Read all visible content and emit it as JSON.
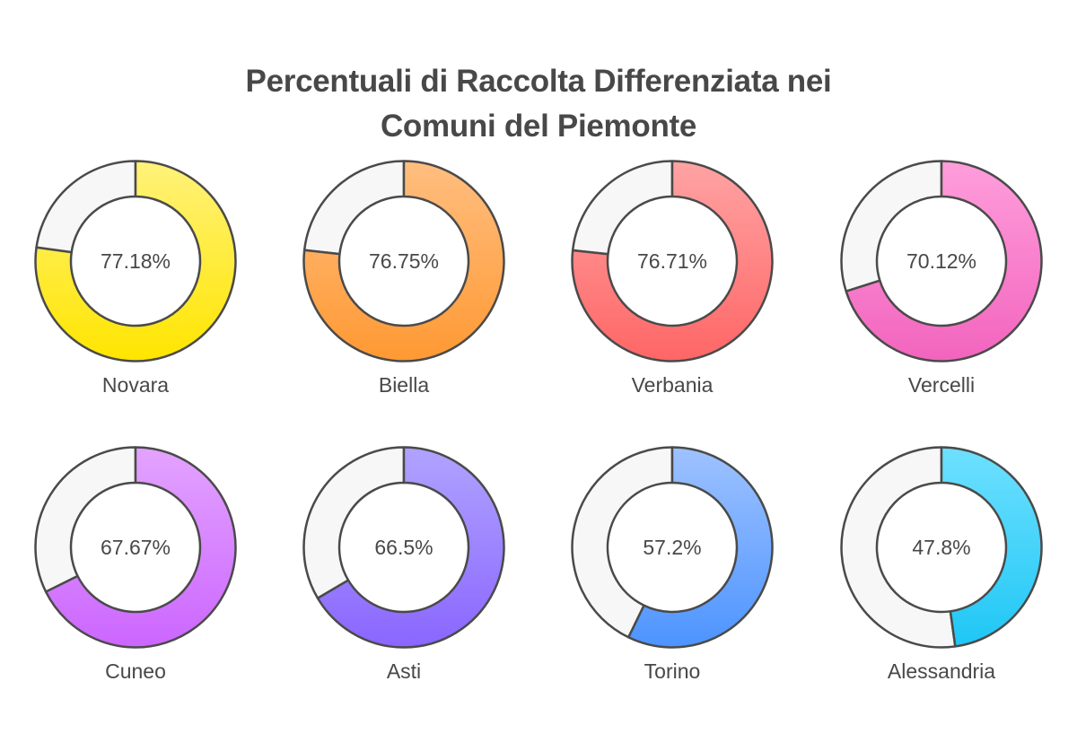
{
  "chart_data": {
    "type": "pie",
    "subtype": "donut-grid",
    "title_lines": [
      "Percentuali di Raccolta Differenziata nei",
      "Comuni del Piemonte"
    ],
    "unit": "%",
    "items": [
      {
        "category": "Novara",
        "value": 77.18,
        "label": "77.18%",
        "color_top": "#FFF27A",
        "color_bottom": "#FFE500"
      },
      {
        "category": "Biella",
        "value": 76.75,
        "label": "76.75%",
        "color_top": "#FFBE80",
        "color_bottom": "#FF9933"
      },
      {
        "category": "Verbania",
        "value": 76.71,
        "label": "76.71%",
        "color_top": "#FFA3A3",
        "color_bottom": "#FF6666"
      },
      {
        "category": "Vercelli",
        "value": 70.12,
        "label": "70.12%",
        "color_top": "#FF9EDB",
        "color_bottom": "#F264BE"
      },
      {
        "category": "Cuneo",
        "value": 67.67,
        "label": "67.67%",
        "color_top": "#E3A3FF",
        "color_bottom": "#CC66FF"
      },
      {
        "category": "Asti",
        "value": 66.5,
        "label": "66.5%",
        "color_top": "#B0A3FF",
        "color_bottom": "#8A66FF"
      },
      {
        "category": "Torino",
        "value": 57.2,
        "label": "57.2%",
        "color_top": "#9EC2FF",
        "color_bottom": "#4D94FF"
      },
      {
        "category": "Alessandria",
        "value": 47.8,
        "label": "47.8%",
        "color_top": "#6EE0FF",
        "color_bottom": "#1FC7F5"
      }
    ],
    "remainder_color": "#F7F7F7",
    "outline_color": "#4A4A4A",
    "legend": "none",
    "grid": false
  }
}
